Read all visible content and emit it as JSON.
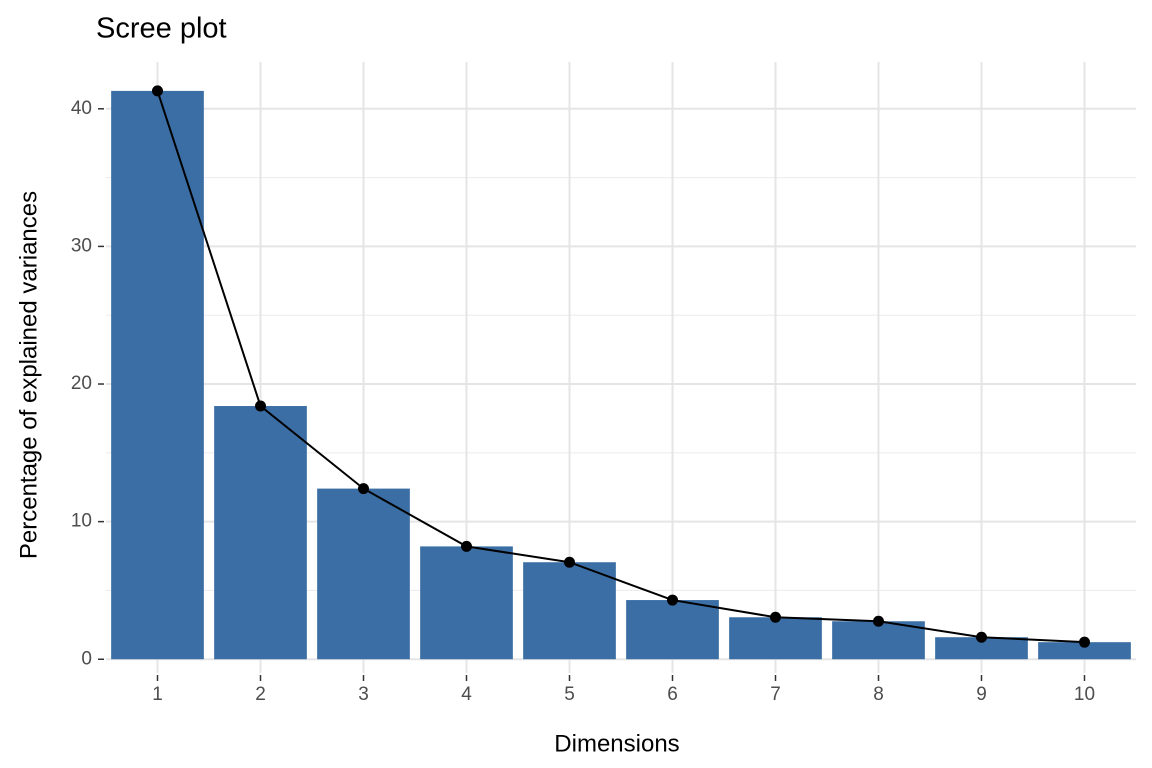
{
  "chart_data": {
    "type": "bar_line",
    "title": "Scree plot",
    "x_label": "Dimensions",
    "y_label": "Percentage of explained variances",
    "categories": [
      "1",
      "2",
      "3",
      "4",
      "5",
      "6",
      "7",
      "8",
      "9",
      "10"
    ],
    "values": [
      41.3,
      18.4,
      12.4,
      8.2,
      7.05,
      4.3,
      3.05,
      2.76,
      1.6,
      1.24
    ],
    "color": "#3b6ea5",
    "line_color": "#000000",
    "ylim": [
      -1,
      43.4
    ],
    "yticks": [
      0,
      10,
      20,
      30,
      40
    ],
    "yminor": [
      5,
      15,
      25,
      35
    ],
    "grid": true
  }
}
